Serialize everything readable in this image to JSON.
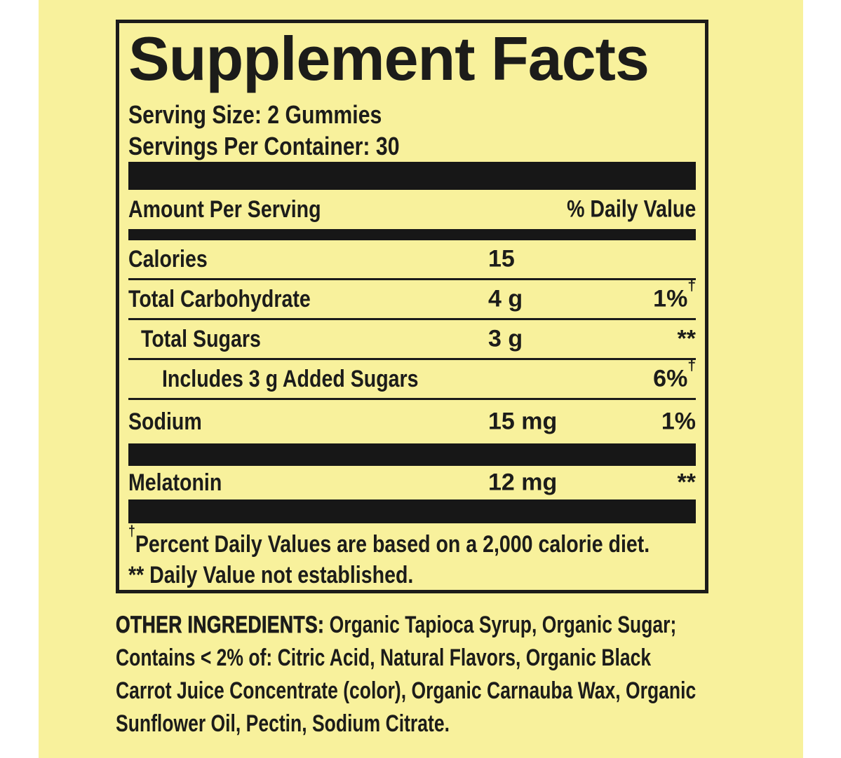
{
  "facts": {
    "title": "Supplement Facts",
    "serving_size": "Serving Size: 2 Gummies",
    "servings_per_container": "Servings Per Container: 30",
    "column_headers": {
      "amount": "Amount Per Serving",
      "daily_value": "% Daily Value"
    },
    "rows": [
      {
        "name": "Calories",
        "amount": "15",
        "dv": "",
        "dv_sup": ""
      },
      {
        "name": "Total Carbohydrate",
        "amount": "4 g",
        "dv": "1%",
        "dv_sup": "†"
      },
      {
        "name": "Total Sugars",
        "amount": "3 g",
        "dv": "**",
        "dv_sup": ""
      },
      {
        "name": "Includes 3 g Added Sugars",
        "amount": "",
        "dv": "6%",
        "dv_sup": "†"
      },
      {
        "name": "Sodium",
        "amount": "15 mg",
        "dv": "1%",
        "dv_sup": ""
      },
      {
        "name": "Melatonin",
        "amount": "12 mg",
        "dv": "**",
        "dv_sup": ""
      }
    ],
    "footnotes": [
      {
        "marker": "†",
        "text": "Percent Daily Values are based on a 2,000 calorie diet."
      },
      {
        "marker": "**",
        "text": " Daily Value not established."
      }
    ]
  },
  "other_ingredients": {
    "lead": "OTHER INGREDIENTS:",
    "lines": [
      " Organic Tapioca Syrup, Organic Sugar;",
      "Contains < 2% of: Citric Acid, Natural Flavors, Organic Black",
      "Carrot Juice Concentrate (color), Organic Carnauba Wax, Organic",
      "Sunflower Oil, Pectin, Sodium Citrate."
    ]
  },
  "colors": {
    "label_background": "#f8f19c",
    "ink": "#1c1c1a",
    "divider_bar": "#171717",
    "page_margin": "#ffffff"
  }
}
